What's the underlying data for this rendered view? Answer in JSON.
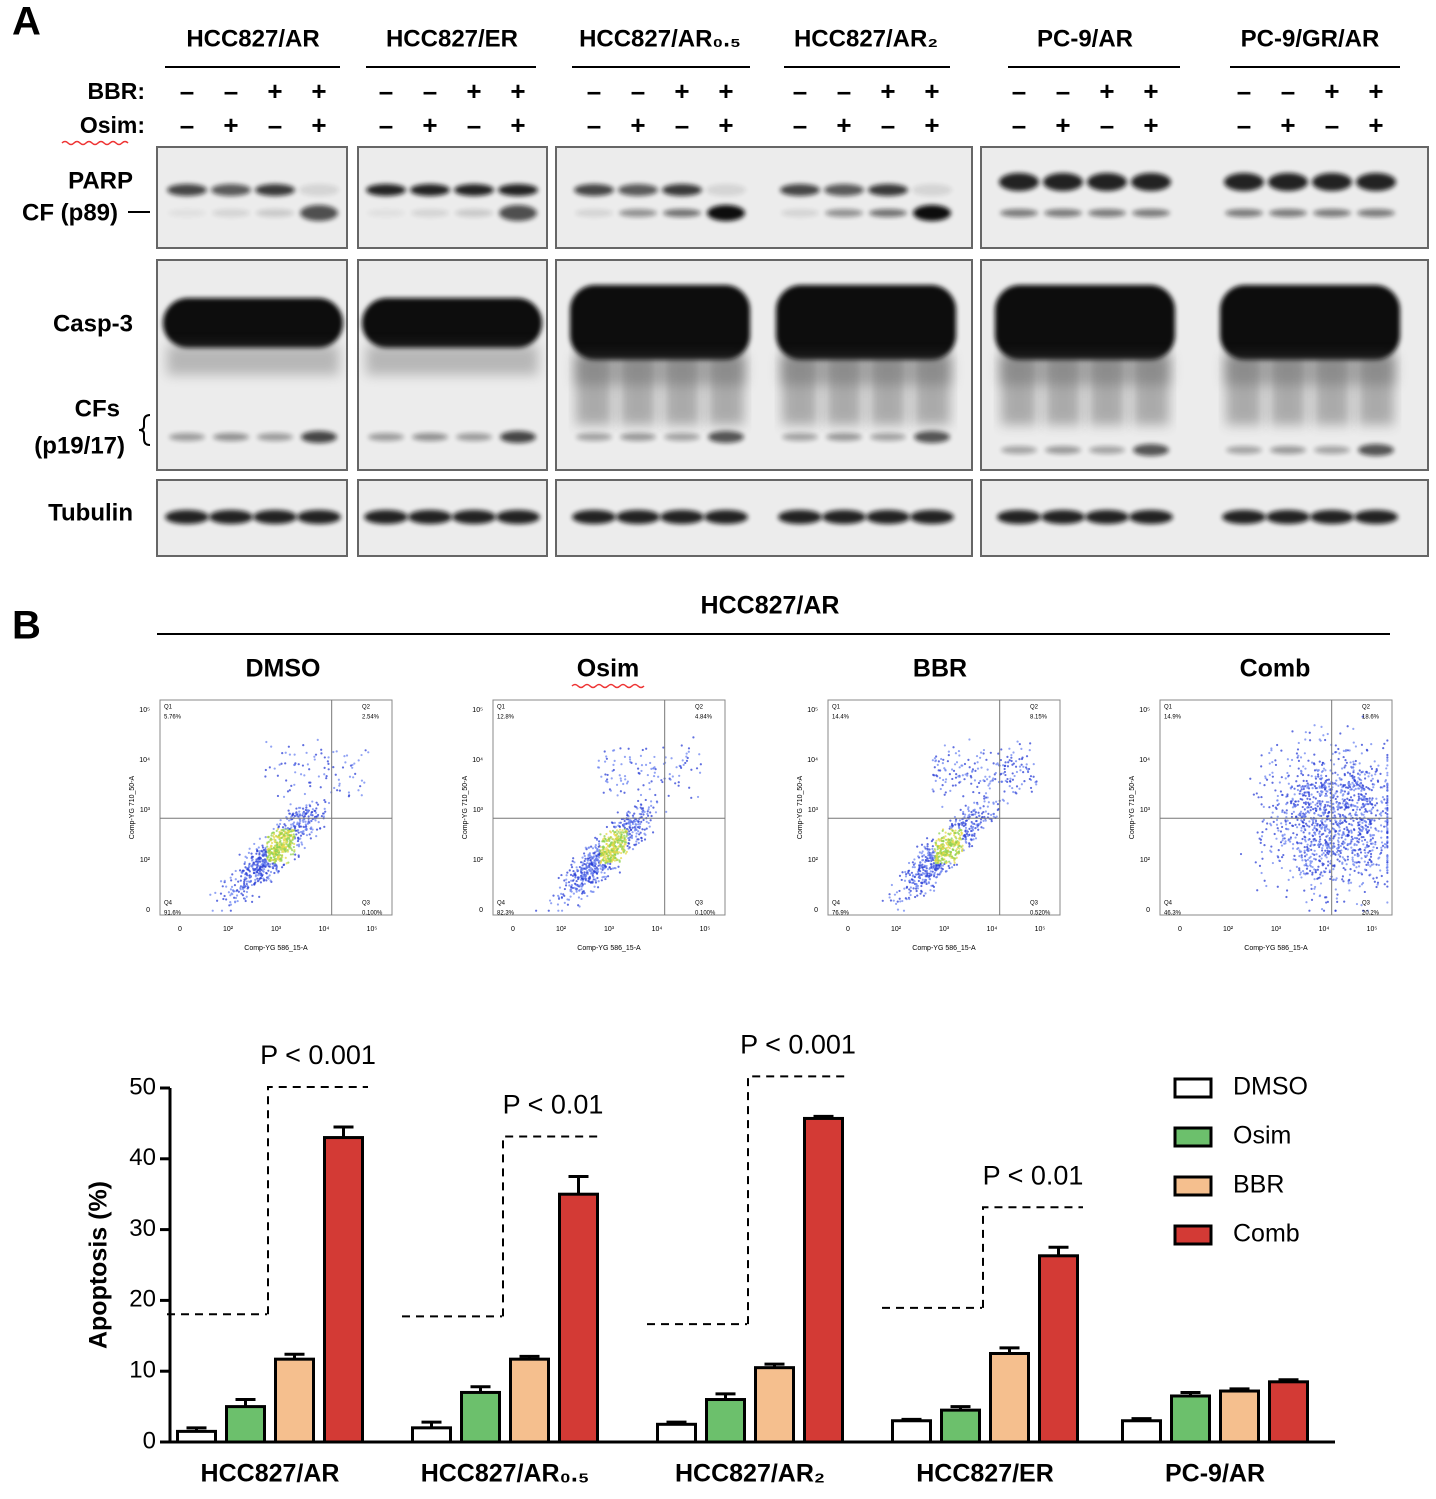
{
  "panel_a": {
    "label": "A",
    "cell_lines": [
      "HCC827/AR",
      "HCC827/ER",
      "HCC827/AR₀.₅",
      "HCC827/AR₂",
      "PC-9/AR",
      "PC-9/GR/AR"
    ],
    "treatments": [
      {
        "label": "BBR:",
        "signs": [
          "–",
          "–",
          "+",
          "+"
        ]
      },
      {
        "label": "Osim:",
        "signs": [
          "–",
          "+",
          "–",
          "+"
        ]
      }
    ],
    "blot_labels": [
      "PARP",
      "CF (p89)",
      "Casp-3",
      "CFs",
      "(p19/17)",
      "Tubulin"
    ]
  },
  "panel_b": {
    "label": "B",
    "header": "HCC827/AR",
    "flow_plots": [
      {
        "title": "DMSO",
        "quadrants": [
          {
            "name": "Q1",
            "value": "5.76%"
          },
          {
            "name": "Q2",
            "value": "2.54%"
          },
          {
            "name": "Q4",
            "value": "91.6%"
          },
          {
            "name": "Q3",
            "value": "0.100%"
          }
        ]
      },
      {
        "title": "Osim",
        "quadrants": [
          {
            "name": "Q1",
            "value": "12.8%"
          },
          {
            "name": "Q2",
            "value": "4.84%"
          },
          {
            "name": "Q4",
            "value": "82.3%"
          },
          {
            "name": "Q3",
            "value": "0.100%"
          }
        ]
      },
      {
        "title": "BBR",
        "quadrants": [
          {
            "name": "Q1",
            "value": "14.4%"
          },
          {
            "name": "Q2",
            "value": "8.15%"
          },
          {
            "name": "Q4",
            "value": "76.9%"
          },
          {
            "name": "Q3",
            "value": "0.520%"
          }
        ]
      },
      {
        "title": "Comb",
        "quadrants": [
          {
            "name": "Q1",
            "value": "14.9%"
          },
          {
            "name": "Q2",
            "value": "18.6%"
          },
          {
            "name": "Q4",
            "value": "46.3%"
          },
          {
            "name": "Q3",
            "value": "20.2%"
          }
        ]
      }
    ],
    "flow_axis": {
      "x_label": "Comp-YG 586_15-A",
      "y_label": "Comp-YG 710_50-A",
      "ticks": [
        "0",
        "10²",
        "10³",
        "10⁴",
        "10⁵"
      ]
    }
  },
  "chart_data": {
    "type": "bar",
    "categories": [
      "HCC827/AR",
      "HCC827/AR₀.₅",
      "HCC827/AR₂",
      "HCC827/ER",
      "PC-9/AR"
    ],
    "series": [
      {
        "name": "DMSO",
        "color": "#ffffff",
        "values": [
          1.5,
          2,
          2.5,
          3,
          3
        ],
        "errors": [
          0.5,
          0.8,
          0.3,
          0.2,
          0.3
        ]
      },
      {
        "name": "Osim",
        "color": "#6cc06c",
        "values": [
          5,
          7,
          6,
          4.5,
          6.5
        ],
        "errors": [
          1,
          0.8,
          0.8,
          0.5,
          0.5
        ]
      },
      {
        "name": "BBR",
        "color": "#f5bf8e",
        "values": [
          11.7,
          11.7,
          10.5,
          12.5,
          7.2
        ],
        "errors": [
          0.7,
          0.4,
          0.5,
          0.8,
          0.3
        ]
      },
      {
        "name": "Comb",
        "color": "#d33a35",
        "values": [
          43,
          35,
          45.7,
          26.3,
          8.5
        ],
        "errors": [
          1.5,
          2.5,
          0.3,
          1.2,
          0.3
        ]
      }
    ],
    "y_label": "Apoptosis (%)",
    "ylim": [
      0,
      50
    ],
    "yticks": [
      0,
      10,
      20,
      30,
      40,
      50
    ],
    "annotations": [
      "P < 0.001",
      "P < 0.01",
      "P < 0.001",
      "P < 0.01"
    ],
    "legend": "top-right"
  }
}
